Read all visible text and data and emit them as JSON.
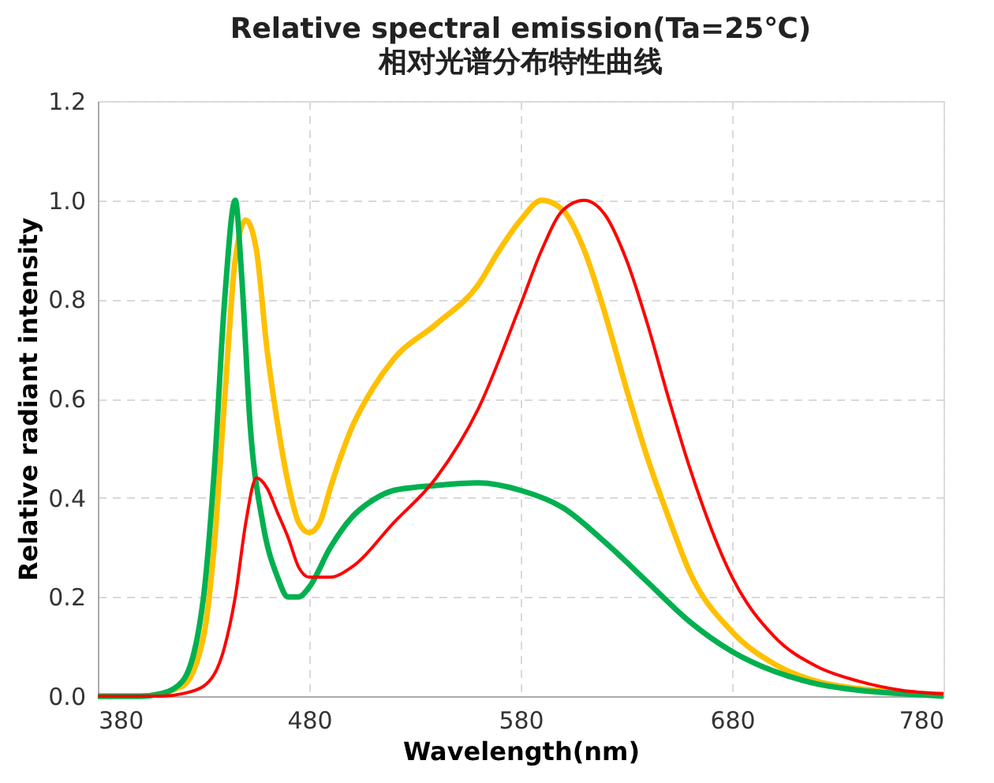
{
  "chart_data": {
    "type": "line",
    "title": "Relative spectral emission(Ta=25℃)",
    "subtitle": "相对光谱分布特性曲线",
    "xlabel": "Wavelength(nm)",
    "ylabel": "Relative radiant intensity",
    "xlim": [
      380,
      780
    ],
    "xticks": [
      380,
      480,
      580,
      680,
      780
    ],
    "ylim": [
      0,
      1.2
    ],
    "yticks": [
      {
        "value": 0,
        "label": "0.0"
      },
      {
        "value": 0.2,
        "label": "0.2"
      },
      {
        "value": 0.4,
        "label": "0.4"
      },
      {
        "value": 0.6,
        "label": "0.6"
      },
      {
        "value": 0.8,
        "label": "0.8"
      },
      {
        "value": 1,
        "label": "1.0"
      },
      1.2
    ],
    "grid": true,
    "marker": "none",
    "line_style": "solid",
    "series": [
      {
        "color": "#ff0000",
        "x": [
          380,
          410,
          420,
          430,
          440,
          445,
          450,
          455,
          460,
          465,
          470,
          475,
          480,
          490,
          500,
          520,
          540,
          560,
          580,
          590,
          600,
          610,
          620,
          630,
          640,
          650,
          660,
          680,
          700,
          720,
          740,
          760,
          780
        ],
        "values": [
          0,
          0,
          0.005,
          0.02,
          0.1,
          0.2,
          0.35,
          0.44,
          0.42,
          0.37,
          0.32,
          0.26,
          0.24,
          0.24,
          0.26,
          0.35,
          0.44,
          0.58,
          0.79,
          0.9,
          0.98,
          1.0,
          0.97,
          0.88,
          0.75,
          0.6,
          0.46,
          0.24,
          0.12,
          0.06,
          0.03,
          0.012,
          0.005
        ]
      },
      {
        "color": "#ffc000",
        "x": [
          380,
          400,
          420,
          430,
          435,
          440,
          445,
          450,
          455,
          460,
          465,
          470,
          475,
          480,
          485,
          490,
          500,
          510,
          520,
          540,
          560,
          570,
          580,
          590,
          600,
          610,
          620,
          630,
          640,
          650,
          660,
          680,
          700,
          720,
          740,
          760,
          780
        ],
        "values": [
          0,
          0,
          0.02,
          0.12,
          0.3,
          0.6,
          0.88,
          0.96,
          0.9,
          0.7,
          0.55,
          0.43,
          0.35,
          0.33,
          0.35,
          0.42,
          0.54,
          0.62,
          0.68,
          0.75,
          0.83,
          0.9,
          0.96,
          1.0,
          0.98,
          0.9,
          0.77,
          0.62,
          0.48,
          0.36,
          0.25,
          0.13,
          0.065,
          0.03,
          0.015,
          0.007,
          0.003
        ]
      },
      {
        "color": "#00b050",
        "x": [
          380,
          400,
          410,
          420,
          430,
          435,
          440,
          445,
          448,
          452,
          458,
          465,
          470,
          475,
          480,
          490,
          500,
          510,
          520,
          540,
          560,
          580,
          600,
          620,
          640,
          660,
          680,
          700,
          720,
          740,
          760,
          780
        ],
        "values": [
          0,
          0,
          0.005,
          0.03,
          0.2,
          0.45,
          0.8,
          1.0,
          0.85,
          0.55,
          0.35,
          0.24,
          0.2,
          0.2,
          0.22,
          0.3,
          0.36,
          0.395,
          0.415,
          0.425,
          0.43,
          0.415,
          0.38,
          0.31,
          0.23,
          0.15,
          0.09,
          0.05,
          0.025,
          0.012,
          0.005,
          0
        ]
      }
    ]
  }
}
